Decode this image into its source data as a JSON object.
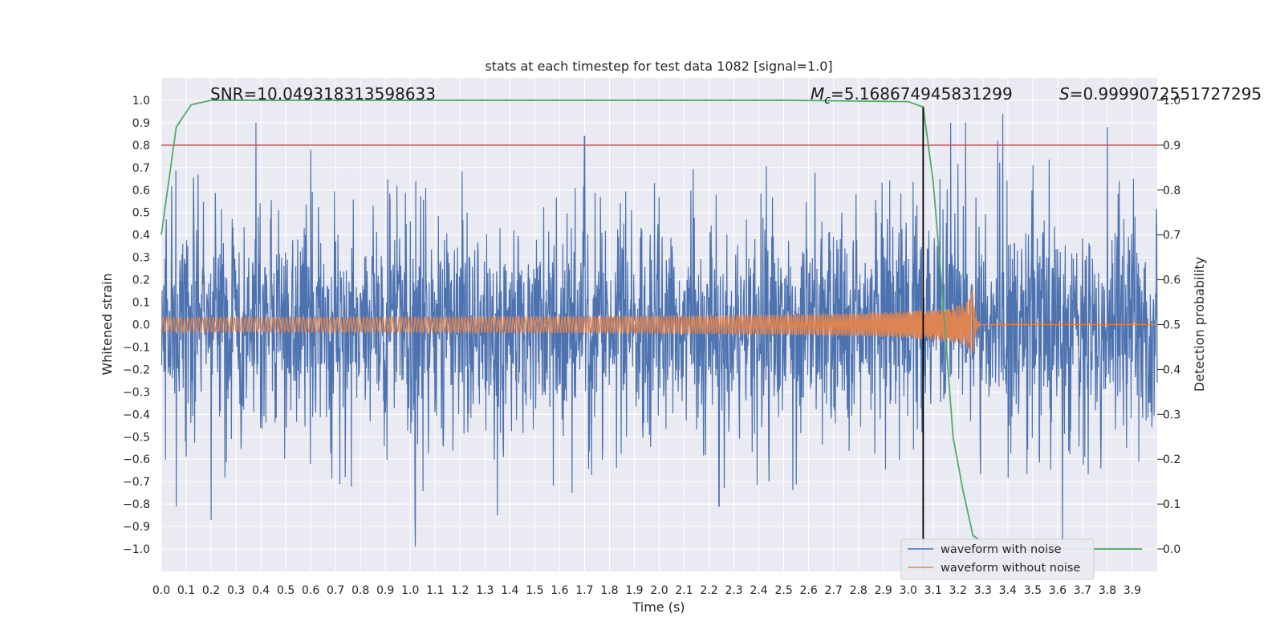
{
  "chart_data": {
    "type": "line",
    "title": "stats at each timestep for test data 1082 [signal=1.0]",
    "xlabel": "Time (s)",
    "ylabel": "Whitened strain",
    "y2label": "Detection probability",
    "xlim": [
      0.0,
      4.0
    ],
    "ylim": [
      -1.1,
      1.1
    ],
    "y2lim": [
      -0.05,
      1.05
    ],
    "xticks": [
      "0.0",
      "0.1",
      "0.2",
      "0.3",
      "0.4",
      "0.5",
      "0.6",
      "0.7",
      "0.8",
      "0.9",
      "1.0",
      "1.1",
      "1.2",
      "1.3",
      "1.4",
      "1.5",
      "1.6",
      "1.7",
      "1.8",
      "1.9",
      "2.0",
      "2.1",
      "2.2",
      "2.3",
      "2.4",
      "2.5",
      "2.6",
      "2.7",
      "2.8",
      "2.9",
      "3.0",
      "3.1",
      "3.2",
      "3.3",
      "3.4",
      "3.5",
      "3.6",
      "3.7",
      "3.8",
      "3.9"
    ],
    "yticks": [
      "1.0",
      "0.9",
      "0.8",
      "0.7",
      "0.6",
      "0.5",
      "0.4",
      "0.3",
      "0.2",
      "0.1",
      "0.0",
      "−0.1",
      "−0.2",
      "−0.3",
      "−0.4",
      "−0.5",
      "−0.6",
      "−0.7",
      "−0.8",
      "−0.9",
      "−1.0"
    ],
    "y2ticks": [
      "1.0",
      "0.9",
      "0.8",
      "0.7",
      "0.6",
      "0.5",
      "0.4",
      "0.3",
      "0.2",
      "0.1",
      "0.0"
    ],
    "threshold": 0.9,
    "event_time": 3.06,
    "waveform_noise_peaks": [
      [
        0.06,
        -0.81
      ],
      [
        0.2,
        -0.87
      ],
      [
        0.38,
        0.9
      ],
      [
        0.6,
        0.78
      ],
      [
        1.02,
        -0.99
      ],
      [
        1.35,
        -0.85
      ],
      [
        1.7,
        0.84
      ],
      [
        2.24,
        0.88
      ],
      [
        2.24,
        -0.81
      ],
      [
        3.17,
        0.9
      ],
      [
        3.23,
        0.9
      ],
      [
        3.36,
        0.82
      ],
      [
        3.38,
        0.94
      ],
      [
        3.62,
        -0.98
      ],
      [
        3.8,
        0.88
      ]
    ],
    "detection_probability": {
      "x": [
        0.0,
        0.06,
        0.12,
        0.2,
        0.5,
        1.0,
        1.5,
        2.0,
        2.5,
        3.0,
        3.06,
        3.1,
        3.14,
        3.18,
        3.22,
        3.26,
        3.3,
        3.4,
        3.6,
        3.8,
        3.94
      ],
      "y": [
        0.7,
        0.94,
        0.99,
        1.0,
        1.0,
        1.0,
        1.0,
        1.0,
        1.0,
        0.997,
        0.985,
        0.82,
        0.55,
        0.25,
        0.13,
        0.03,
        0.015,
        0.0,
        0.0,
        0.0,
        0.0
      ]
    },
    "series": [
      {
        "name": "waveform with noise",
        "color": "#4c72b0"
      },
      {
        "name": "waveform without noise",
        "color": "#dd8452"
      },
      {
        "name": "detection probability",
        "color": "#55a868",
        "legend": false
      },
      {
        "name": "threshold",
        "color": "#c44e52",
        "legend": false
      }
    ],
    "annotations": {
      "snr": "SNR=10.049318313598633",
      "mc_symbol": "M",
      "mc_sub": "c",
      "mc_value": "=5.168674945831299",
      "s_symbol": "S",
      "s_value": "=0.9999072551727295"
    }
  }
}
